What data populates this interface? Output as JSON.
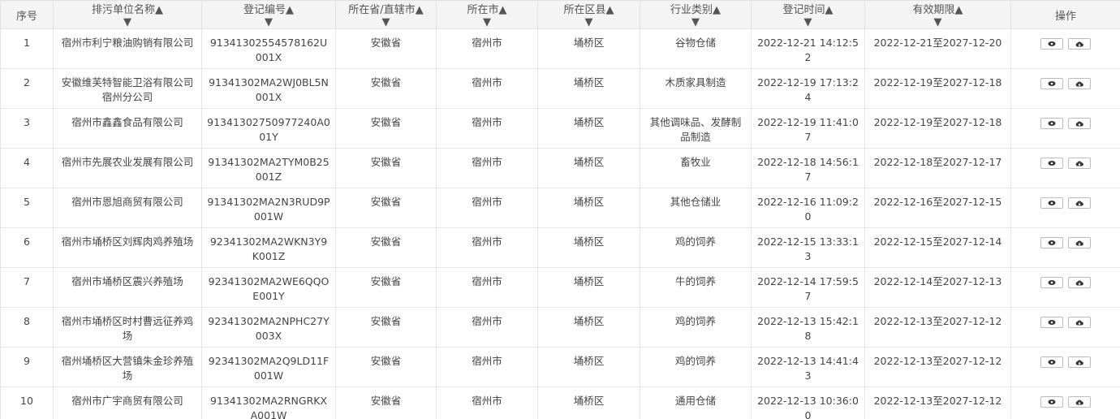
{
  "header": {
    "columns": [
      "序号",
      "排污单位名称",
      "登记编号",
      "所在省/直辖市",
      "所在市",
      "所在区县",
      "行业类别",
      "登记时间",
      "有效期限",
      "操作"
    ]
  },
  "table": {
    "rows": [
      [
        "1",
        "宿州市利宁粮油购销有限公司",
        "91341302554578162U001X",
        "安徽省",
        "宿州市",
        "埇桥区",
        "谷物仓储",
        "2022-12-21 14:12:52",
        "2022-12-21至2027-12-20"
      ],
      [
        "2",
        "安徽维芙特智能卫浴有限公司宿州分公司",
        "91341302MA2WJ0BL5N001X",
        "安徽省",
        "宿州市",
        "埇桥区",
        "木质家具制造",
        "2022-12-19 17:13:24",
        "2022-12-19至2027-12-18"
      ],
      [
        "3",
        "宿州市鑫鑫食品有限公司",
        "91341302750977240A001Y",
        "安徽省",
        "宿州市",
        "埇桥区",
        "其他调味品、发酵制品制造",
        "2022-12-19 11:41:07",
        "2022-12-19至2027-12-18"
      ],
      [
        "4",
        "宿州市先展农业发展有限公司",
        "91341302MA2TYM0B25001Z",
        "安徽省",
        "宿州市",
        "埇桥区",
        "畜牧业",
        "2022-12-18 14:56:17",
        "2022-12-18至2027-12-17"
      ],
      [
        "5",
        "宿州市恩旭商贸有限公司",
        "91341302MA2N3RUD9P001W",
        "安徽省",
        "宿州市",
        "埇桥区",
        "其他仓储业",
        "2022-12-16 11:09:20",
        "2022-12-16至2027-12-15"
      ],
      [
        "6",
        "宿州市埇桥区刘辉肉鸡养殖场",
        "92341302MA2WKN3Y9K001Z",
        "安徽省",
        "宿州市",
        "埇桥区",
        "鸡的饲养",
        "2022-12-15 13:33:13",
        "2022-12-15至2027-12-14"
      ],
      [
        "7",
        "宿州市埇桥区震兴养殖场",
        "92341302MA2WE6QQOE001Y",
        "安徽省",
        "宿州市",
        "埇桥区",
        "牛的饲养",
        "2022-12-14 17:59:57",
        "2022-12-14至2027-12-13"
      ],
      [
        "8",
        "宿州市埇桥区时村曹远征养鸡场",
        "92341302MA2NPHC27Y003X",
        "安徽省",
        "宿州市",
        "埇桥区",
        "鸡的饲养",
        "2022-12-13 15:42:18",
        "2022-12-13至2027-12-12"
      ],
      [
        "9",
        "宿州埇桥区大营镇朱金珍养殖场",
        "92341302MA2Q9LD11F001W",
        "安徽省",
        "宿州市",
        "埇桥区",
        "鸡的饲养",
        "2022-12-13 14:41:43",
        "2022-12-13至2027-12-12"
      ],
      [
        "10",
        "宿州市广宇商贸有限公司",
        "91341302MA2RNGRKXA001W",
        "安徽省",
        "宿州市",
        "埇桥区",
        "通用仓储",
        "2022-12-13 10:36:00",
        "2022-12-13至2027-12-12"
      ]
    ]
  }
}
